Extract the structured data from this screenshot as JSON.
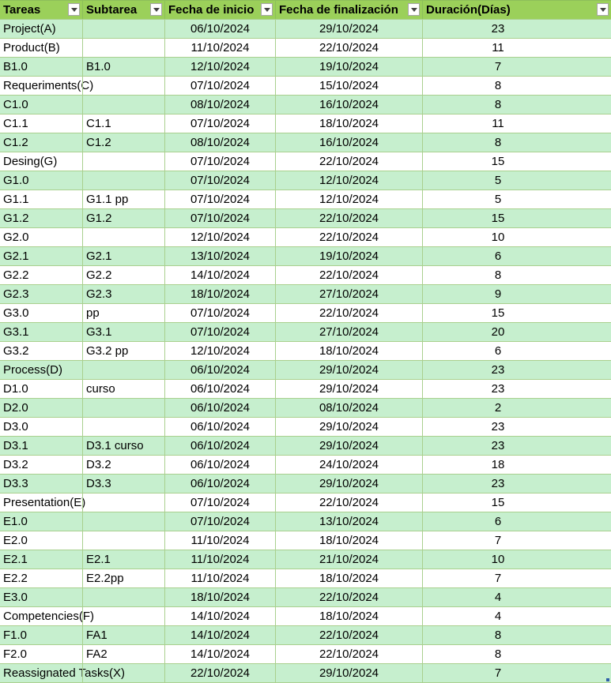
{
  "table": {
    "headers": [
      "Tareas",
      "Subtarea",
      "Fecha de inicio",
      "Fecha de finalización",
      "Duración(Días)"
    ],
    "rows": [
      [
        "Project(A)",
        "",
        "06/10/2024",
        "29/10/2024",
        "23"
      ],
      [
        "Product(B)",
        "",
        "11/10/2024",
        "22/10/2024",
        "11"
      ],
      [
        "B1.0",
        "B1.0",
        "12/10/2024",
        "19/10/2024",
        "7"
      ],
      [
        "Requeriments(C)",
        "",
        "07/10/2024",
        "15/10/2024",
        "8"
      ],
      [
        "C1.0",
        "",
        "08/10/2024",
        "16/10/2024",
        "8"
      ],
      [
        "C1.1",
        "C1.1",
        "07/10/2024",
        "18/10/2024",
        "11"
      ],
      [
        "C1.2",
        "C1.2",
        "08/10/2024",
        "16/10/2024",
        "8"
      ],
      [
        "Desing(G)",
        "",
        "07/10/2024",
        "22/10/2024",
        "15"
      ],
      [
        "G1.0",
        "",
        "07/10/2024",
        "12/10/2024",
        "5"
      ],
      [
        "G1.1",
        "G1.1 pp",
        "07/10/2024",
        "12/10/2024",
        "5"
      ],
      [
        "G1.2",
        "G1.2",
        "07/10/2024",
        "22/10/2024",
        "15"
      ],
      [
        "G2.0",
        "",
        "12/10/2024",
        "22/10/2024",
        "10"
      ],
      [
        "G2.1",
        "G2.1",
        "13/10/2024",
        "19/10/2024",
        "6"
      ],
      [
        "G2.2",
        "G2.2",
        "14/10/2024",
        "22/10/2024",
        "8"
      ],
      [
        "G2.3",
        "G2.3",
        "18/10/2024",
        "27/10/2024",
        "9"
      ],
      [
        "G3.0",
        "pp",
        "07/10/2024",
        "22/10/2024",
        "15"
      ],
      [
        "G3.1",
        "G3.1",
        "07/10/2024",
        "27/10/2024",
        "20"
      ],
      [
        "G3.2",
        "G3.2 pp",
        "12/10/2024",
        "18/10/2024",
        "6"
      ],
      [
        "Process(D)",
        "",
        "06/10/2024",
        "29/10/2024",
        "23"
      ],
      [
        "D1.0",
        "curso",
        "06/10/2024",
        "29/10/2024",
        "23"
      ],
      [
        "D2.0",
        "",
        "06/10/2024",
        "08/10/2024",
        "2"
      ],
      [
        "D3.0",
        "",
        "06/10/2024",
        "29/10/2024",
        "23"
      ],
      [
        "D3.1",
        "D3.1 curso",
        "06/10/2024",
        "29/10/2024",
        "23"
      ],
      [
        "D3.2",
        "D3.2",
        "06/10/2024",
        "24/10/2024",
        "18"
      ],
      [
        "D3.3",
        "D3.3",
        "06/10/2024",
        "29/10/2024",
        "23"
      ],
      [
        "Presentation(E)",
        "",
        "07/10/2024",
        "22/10/2024",
        "15"
      ],
      [
        "E1.0",
        "",
        "07/10/2024",
        "13/10/2024",
        "6"
      ],
      [
        "E2.0",
        "",
        "11/10/2024",
        "18/10/2024",
        "7"
      ],
      [
        "E2.1",
        "E2.1",
        "11/10/2024",
        "21/10/2024",
        "10"
      ],
      [
        "E2.2",
        "E2.2pp",
        "11/10/2024",
        "18/10/2024",
        "7"
      ],
      [
        "E3.0",
        "",
        "18/10/2024",
        "22/10/2024",
        "4"
      ],
      [
        "Competencies(F)",
        "",
        "14/10/2024",
        "18/10/2024",
        "4"
      ],
      [
        "F1.0",
        "FA1",
        "14/10/2024",
        "22/10/2024",
        "8"
      ],
      [
        "F2.0",
        "FA2",
        "14/10/2024",
        "22/10/2024",
        "8"
      ],
      [
        "Reassignated Tasks(X)",
        "",
        "22/10/2024",
        "29/10/2024",
        "7"
      ]
    ]
  },
  "colors": {
    "header_bg": "#9bd05a",
    "band_green": "#c6efce",
    "band_white": "#ffffff",
    "gridline": "#a9d08e"
  },
  "icons": {
    "filter": "filter-dropdown-icon",
    "resize": "table-resize-handle-icon"
  }
}
